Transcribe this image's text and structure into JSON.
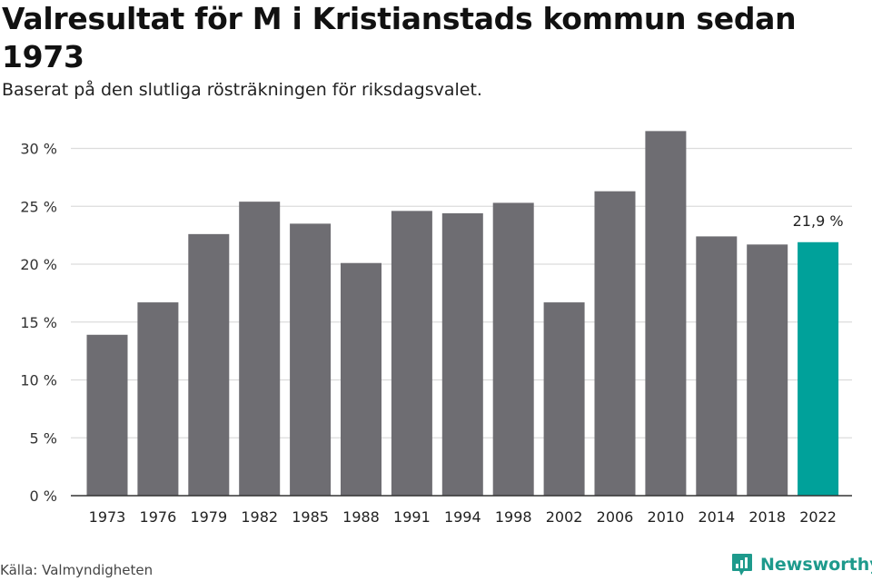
{
  "header": {
    "title": "Valresultat för M i Kristianstads kommun sedan 1973",
    "subtitle": "Baserat på den slutliga rösträkningen för riksdagsvalet."
  },
  "footer": {
    "source": "Källa: Valmyndigheten",
    "brand": "Newsworthy"
  },
  "colors": {
    "bar": "#6e6d72",
    "highlight": "#00a19a",
    "grid": "#dcdcdc",
    "axis": "#333333",
    "brand": "#1e9a8c"
  },
  "chart_data": {
    "type": "bar",
    "categories": [
      "1973",
      "1976",
      "1979",
      "1982",
      "1985",
      "1988",
      "1991",
      "1994",
      "1998",
      "2002",
      "2006",
      "2010",
      "2014",
      "2018",
      "2022"
    ],
    "values": [
      13.9,
      16.7,
      22.6,
      25.4,
      23.5,
      20.1,
      24.6,
      24.4,
      25.3,
      16.7,
      26.3,
      31.5,
      22.4,
      21.7,
      21.9
    ],
    "highlight_index": 14,
    "data_label": "21,9 %",
    "yticks": [
      0,
      5,
      10,
      15,
      20,
      25,
      30
    ],
    "ytick_labels": [
      "0 %",
      "5 %",
      "10 %",
      "15 %",
      "20 %",
      "25 %",
      "30 %"
    ],
    "ylim": [
      0,
      32
    ],
    "grid": true,
    "title": "Valresultat för M i Kristianstads kommun sedan 1973",
    "subtitle": "Baserat på den slutliga rösträkningen för riksdagsvalet."
  }
}
